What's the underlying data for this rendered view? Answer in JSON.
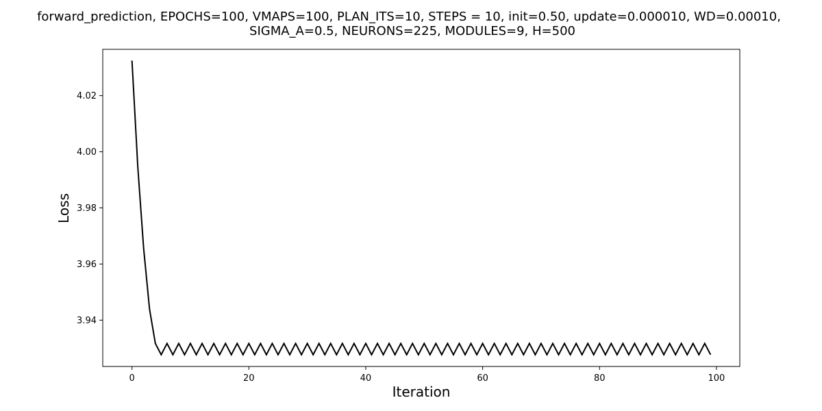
{
  "chart_data": {
    "type": "line",
    "title_lines": [
      "forward_prediction, EPOCHS=100, VMAPS=100, PLAN_ITS=10, STEPS = 10, init=0.50, update=0.000010, WD=0.00010,",
      "SIGMA_A=0.5, NEURONS=225, MODULES=9, H=500"
    ],
    "xlabel": "Iteration",
    "ylabel": "Loss",
    "xlim": [
      -5,
      104
    ],
    "ylim": [
      3.9235,
      4.0365
    ],
    "x_ticks": [
      0,
      20,
      40,
      60,
      80,
      100
    ],
    "y_ticks": [
      3.94,
      3.96,
      3.98,
      4.0,
      4.02
    ],
    "grid": false,
    "line_color": "#000000",
    "series": [
      {
        "x": [
          0,
          1,
          2,
          3,
          4,
          5,
          6,
          7,
          8,
          9,
          10,
          11,
          12,
          13,
          14,
          15,
          16,
          17,
          18,
          19,
          20,
          21,
          22,
          23,
          24,
          25,
          26,
          27,
          28,
          29,
          30,
          31,
          32,
          33,
          34,
          35,
          36,
          37,
          38,
          39,
          40,
          41,
          42,
          43,
          44,
          45,
          46,
          47,
          48,
          49,
          50,
          51,
          52,
          53,
          54,
          55,
          56,
          57,
          58,
          59,
          60,
          61,
          62,
          63,
          64,
          65,
          66,
          67,
          68,
          69,
          70,
          71,
          72,
          73,
          74,
          75,
          76,
          77,
          78,
          79,
          80,
          81,
          82,
          83,
          84,
          85,
          86,
          87,
          88,
          89,
          90,
          91,
          92,
          93,
          94,
          95,
          96,
          97,
          98,
          99
        ],
        "y": [
          4.0325,
          3.9945,
          3.9655,
          3.944,
          3.9317,
          3.9277,
          3.9317,
          3.9277,
          3.9317,
          3.9277,
          3.9317,
          3.9277,
          3.9317,
          3.9277,
          3.9317,
          3.9277,
          3.9317,
          3.9277,
          3.9317,
          3.9277,
          3.9317,
          3.9277,
          3.9317,
          3.9277,
          3.9317,
          3.9277,
          3.9317,
          3.9277,
          3.9317,
          3.9277,
          3.9317,
          3.9277,
          3.9317,
          3.9277,
          3.9317,
          3.9277,
          3.9317,
          3.9277,
          3.9317,
          3.9277,
          3.9317,
          3.9277,
          3.9317,
          3.9277,
          3.9317,
          3.9277,
          3.9317,
          3.9277,
          3.9317,
          3.9277,
          3.9317,
          3.9277,
          3.9317,
          3.9277,
          3.9317,
          3.9277,
          3.9317,
          3.9277,
          3.9317,
          3.9277,
          3.9317,
          3.9277,
          3.9317,
          3.9277,
          3.9317,
          3.9277,
          3.9317,
          3.9277,
          3.9317,
          3.9277,
          3.9317,
          3.9277,
          3.9317,
          3.9277,
          3.9317,
          3.9277,
          3.9317,
          3.9277,
          3.9317,
          3.9277,
          3.9317,
          3.9277,
          3.9317,
          3.9277,
          3.9317,
          3.9277,
          3.9317,
          3.9277,
          3.9317,
          3.9277,
          3.9317,
          3.9277,
          3.9317,
          3.9277,
          3.9317,
          3.9277,
          3.9317,
          3.9277,
          3.9317,
          3.9277
        ]
      }
    ]
  }
}
